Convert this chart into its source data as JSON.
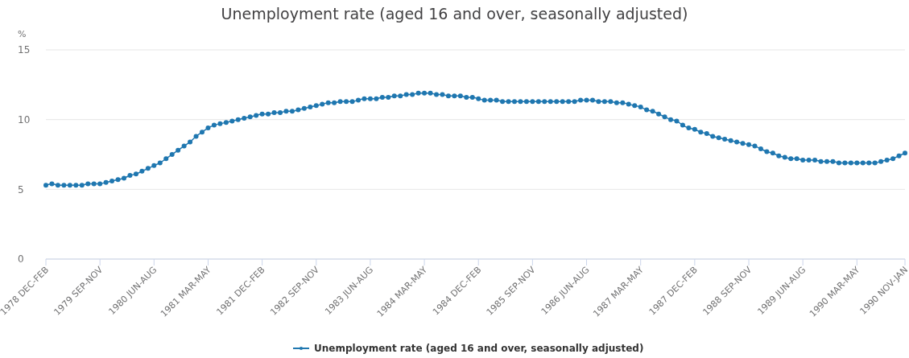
{
  "chart_data": {
    "type": "line",
    "title": "Unemployment rate (aged 16 and over, seasonally adjusted)",
    "ylabel": "%",
    "categories": [
      "1978 DEC-FEB",
      null,
      null,
      null,
      null,
      null,
      null,
      null,
      null,
      "1979 SEP-NOV",
      null,
      null,
      null,
      null,
      null,
      null,
      null,
      null,
      "1980 JUN-AUG",
      null,
      null,
      null,
      null,
      null,
      null,
      null,
      null,
      "1981 MAR-MAY",
      null,
      null,
      null,
      null,
      null,
      null,
      null,
      null,
      "1981 DEC-FEB",
      null,
      null,
      null,
      null,
      null,
      null,
      null,
      null,
      "1982 SEP-NOV",
      null,
      null,
      null,
      null,
      null,
      null,
      null,
      null,
      "1983 JUN-AUG",
      null,
      null,
      null,
      null,
      null,
      null,
      null,
      null,
      "1984 MAR-MAY",
      null,
      null,
      null,
      null,
      null,
      null,
      null,
      null,
      "1984 DEC-FEB",
      null,
      null,
      null,
      null,
      null,
      null,
      null,
      null,
      "1985 SEP-NOV",
      null,
      null,
      null,
      null,
      null,
      null,
      null,
      null,
      "1986 JUN-AUG",
      null,
      null,
      null,
      null,
      null,
      null,
      null,
      null,
      "1987 MAR-MAY",
      null,
      null,
      null,
      null,
      null,
      null,
      null,
      null,
      "1987 DEC-FEB",
      null,
      null,
      null,
      null,
      null,
      null,
      null,
      null,
      "1988 SEP-NOV",
      null,
      null,
      null,
      null,
      null,
      null,
      null,
      null,
      "1989 JUN-AUG",
      null,
      null,
      null,
      null,
      null,
      null,
      null,
      null,
      "1990 MAR-MAY",
      null,
      null,
      null,
      null,
      null,
      null,
      null,
      "1990 NOV-JAN"
    ],
    "series": [
      {
        "name": "Unemployment rate (aged 16 and over, seasonally adjusted)",
        "color": "#1f77b0",
        "values": [
          5.3,
          5.4,
          5.3,
          5.3,
          5.3,
          5.3,
          5.3,
          5.4,
          5.4,
          5.4,
          5.5,
          5.6,
          5.7,
          5.8,
          6.0,
          6.1,
          6.3,
          6.5,
          6.7,
          6.9,
          7.2,
          7.5,
          7.8,
          8.1,
          8.4,
          8.8,
          9.1,
          9.4,
          9.6,
          9.7,
          9.8,
          9.9,
          10.0,
          10.1,
          10.2,
          10.3,
          10.4,
          10.4,
          10.5,
          10.5,
          10.6,
          10.6,
          10.7,
          10.8,
          10.9,
          11.0,
          11.1,
          11.2,
          11.2,
          11.3,
          11.3,
          11.3,
          11.4,
          11.5,
          11.5,
          11.5,
          11.6,
          11.6,
          11.7,
          11.7,
          11.8,
          11.8,
          11.9,
          11.9,
          11.9,
          11.8,
          11.8,
          11.7,
          11.7,
          11.7,
          11.6,
          11.6,
          11.5,
          11.4,
          11.4,
          11.4,
          11.3,
          11.3,
          11.3,
          11.3,
          11.3,
          11.3,
          11.3,
          11.3,
          11.3,
          11.3,
          11.3,
          11.3,
          11.3,
          11.4,
          11.4,
          11.4,
          11.3,
          11.3,
          11.3,
          11.2,
          11.2,
          11.1,
          11.0,
          10.9,
          10.7,
          10.6,
          10.4,
          10.2,
          10.0,
          9.9,
          9.6,
          9.4,
          9.3,
          9.1,
          9.0,
          8.8,
          8.7,
          8.6,
          8.5,
          8.4,
          8.3,
          8.2,
          8.1,
          7.9,
          7.7,
          7.6,
          7.4,
          7.3,
          7.2,
          7.2,
          7.1,
          7.1,
          7.1,
          7.0,
          7.0,
          7.0,
          6.9,
          6.9,
          6.9,
          6.9,
          6.9,
          6.9,
          6.9,
          7.0,
          7.1,
          7.2,
          7.4,
          7.6
        ]
      }
    ],
    "ylim": [
      0,
      15
    ],
    "yticks": [
      0,
      5,
      10,
      15
    ],
    "grid": "y",
    "legend": "bottom",
    "marker": "circle",
    "line_style": "solid"
  }
}
